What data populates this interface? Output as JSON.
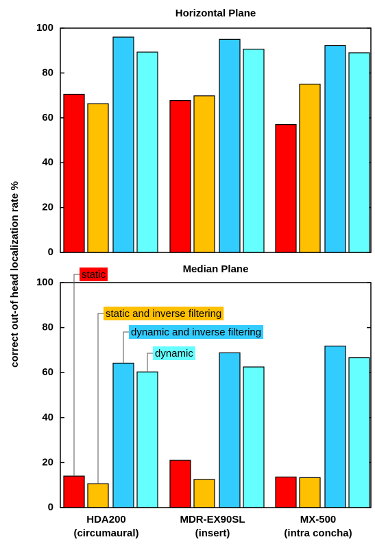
{
  "chart_data": [
    {
      "type": "bar",
      "title": "Horizontal Plane",
      "ylabel": "correct out-of head localization rate  %",
      "series": [
        {
          "color": "#ff0000",
          "values": [
            70.5,
            67.7,
            57
          ]
        },
        {
          "color": "#ffc000",
          "values": [
            66.3,
            69.8,
            75
          ]
        },
        {
          "color": "#33ccff",
          "values": [
            96,
            95,
            92.2
          ]
        },
        {
          "color": "#66ffff",
          "values": [
            89.3,
            90.6,
            89
          ]
        }
      ],
      "ylim": [
        0,
        100
      ],
      "yticks": [
        0,
        20,
        40,
        60,
        80,
        100
      ]
    },
    {
      "type": "bar",
      "title": "Median Plane",
      "categories": [
        [
          "HDA200",
          "(circumaural)"
        ],
        [
          "MDR-EX90SL",
          "(insert)"
        ],
        [
          "MX-500",
          "(intra concha)"
        ]
      ],
      "series": [
        {
          "name": "static",
          "color": "#ff0000",
          "values": [
            14,
            21,
            13.6
          ]
        },
        {
          "name": "static and inverse filtering",
          "color": "#ffc000",
          "values": [
            10.6,
            12.5,
            13.3
          ]
        },
        {
          "name": "dynamic and inverse filtering",
          "color": "#33ccff",
          "values": [
            64.2,
            68.8,
            71.8
          ]
        },
        {
          "name": "dynamic",
          "color": "#66ffff",
          "values": [
            60.3,
            62.5,
            66.6
          ]
        }
      ],
      "ylim": [
        0,
        100
      ],
      "yticks": [
        0,
        20,
        40,
        60,
        80,
        100
      ]
    }
  ]
}
